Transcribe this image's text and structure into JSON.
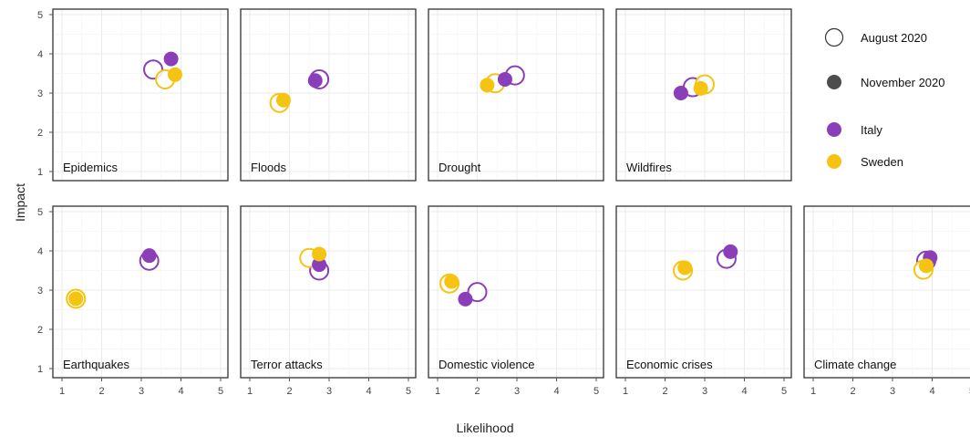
{
  "chart_data": {
    "type": "scatter",
    "xlabel": "Likelihood",
    "ylabel": "Impact",
    "xlim": [
      1,
      5
    ],
    "ylim": [
      1,
      5
    ],
    "xticks": [
      "1",
      "2",
      "3",
      "4",
      "5"
    ],
    "yticks": [
      "1",
      "2",
      "3",
      "4",
      "5"
    ],
    "grid": true,
    "legend_position": "right",
    "legend": [
      {
        "label": "August 2020",
        "marker": "open-circle"
      },
      {
        "label": "November 2020",
        "marker": "filled-circle"
      },
      {
        "label": "Italy",
        "color": "#8a3fb8"
      },
      {
        "label": "Sweden",
        "color": "#f5c413"
      }
    ],
    "panels": [
      {
        "title": "Epidemics",
        "points": [
          {
            "country": "Italy",
            "wave": "August 2020",
            "x": 3.3,
            "y": 3.6
          },
          {
            "country": "Sweden",
            "wave": "August 2020",
            "x": 3.6,
            "y": 3.35
          },
          {
            "country": "Italy",
            "wave": "November 2020",
            "x": 3.75,
            "y": 3.87
          },
          {
            "country": "Sweden",
            "wave": "November 2020",
            "x": 3.85,
            "y": 3.47
          }
        ]
      },
      {
        "title": "Floods",
        "points": [
          {
            "country": "Italy",
            "wave": "August 2020",
            "x": 2.75,
            "y": 3.35
          },
          {
            "country": "Sweden",
            "wave": "August 2020",
            "x": 1.75,
            "y": 2.75
          },
          {
            "country": "Italy",
            "wave": "November 2020",
            "x": 2.65,
            "y": 3.32
          },
          {
            "country": "Sweden",
            "wave": "November 2020",
            "x": 1.85,
            "y": 2.82
          }
        ]
      },
      {
        "title": "Drought",
        "points": [
          {
            "country": "Italy",
            "wave": "August 2020",
            "x": 2.95,
            "y": 3.45
          },
          {
            "country": "Sweden",
            "wave": "August 2020",
            "x": 2.45,
            "y": 3.25
          },
          {
            "country": "Italy",
            "wave": "November 2020",
            "x": 2.7,
            "y": 3.35
          },
          {
            "country": "Sweden",
            "wave": "November 2020",
            "x": 2.25,
            "y": 3.2
          }
        ]
      },
      {
        "title": "Wildfires",
        "points": [
          {
            "country": "Italy",
            "wave": "August 2020",
            "x": 2.7,
            "y": 3.15
          },
          {
            "country": "Sweden",
            "wave": "August 2020",
            "x": 3.0,
            "y": 3.22
          },
          {
            "country": "Italy",
            "wave": "November 2020",
            "x": 2.4,
            "y": 3.0
          },
          {
            "country": "Sweden",
            "wave": "November 2020",
            "x": 2.9,
            "y": 3.12
          }
        ]
      },
      {
        "title": "Earthquakes",
        "points": [
          {
            "country": "Italy",
            "wave": "August 2020",
            "x": 3.2,
            "y": 3.75
          },
          {
            "country": "Sweden",
            "wave": "August 2020",
            "x": 1.35,
            "y": 2.78
          },
          {
            "country": "Italy",
            "wave": "November 2020",
            "x": 3.2,
            "y": 3.88
          },
          {
            "country": "Sweden",
            "wave": "November 2020",
            "x": 1.35,
            "y": 2.78
          }
        ]
      },
      {
        "title": "Terror attacks",
        "points": [
          {
            "country": "Italy",
            "wave": "August 2020",
            "x": 2.75,
            "y": 3.5
          },
          {
            "country": "Sweden",
            "wave": "August 2020",
            "x": 2.5,
            "y": 3.82
          },
          {
            "country": "Italy",
            "wave": "November 2020",
            "x": 2.75,
            "y": 3.65
          },
          {
            "country": "Sweden",
            "wave": "November 2020",
            "x": 2.75,
            "y": 3.92
          }
        ]
      },
      {
        "title": "Domestic violence",
        "points": [
          {
            "country": "Italy",
            "wave": "August 2020",
            "x": 2.0,
            "y": 2.95
          },
          {
            "country": "Sweden",
            "wave": "August 2020",
            "x": 1.3,
            "y": 3.17
          },
          {
            "country": "Italy",
            "wave": "November 2020",
            "x": 1.7,
            "y": 2.77
          },
          {
            "country": "Sweden",
            "wave": "November 2020",
            "x": 1.35,
            "y": 3.22
          }
        ]
      },
      {
        "title": "Economic crises",
        "points": [
          {
            "country": "Italy",
            "wave": "August 2020",
            "x": 3.55,
            "y": 3.8
          },
          {
            "country": "Sweden",
            "wave": "August 2020",
            "x": 2.45,
            "y": 3.5
          },
          {
            "country": "Italy",
            "wave": "November 2020",
            "x": 3.65,
            "y": 3.98
          },
          {
            "country": "Sweden",
            "wave": "November 2020",
            "x": 2.5,
            "y": 3.57
          }
        ]
      },
      {
        "title": "Climate change",
        "points": [
          {
            "country": "Italy",
            "wave": "August 2020",
            "x": 3.85,
            "y": 3.75
          },
          {
            "country": "Sweden",
            "wave": "August 2020",
            "x": 3.78,
            "y": 3.52
          },
          {
            "country": "Italy",
            "wave": "November 2020",
            "x": 3.95,
            "y": 3.83
          },
          {
            "country": "Sweden",
            "wave": "November 2020",
            "x": 3.85,
            "y": 3.62
          }
        ]
      }
    ]
  }
}
